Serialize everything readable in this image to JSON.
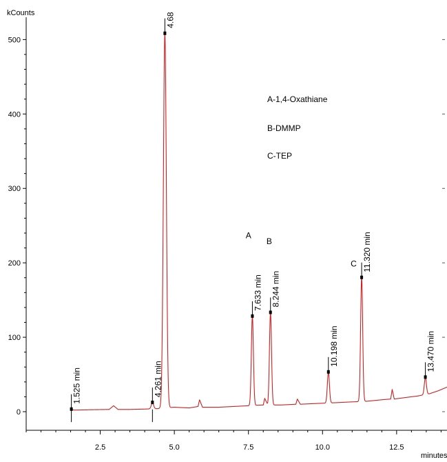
{
  "chart_data": {
    "type": "line",
    "title": "",
    "xlabel": "minutes",
    "ylabel": "kCounts",
    "xlim": [
      0.0,
      14.2
    ],
    "ylim": [
      -25,
      530
    ],
    "grid": false,
    "line_color": "#cc1f1f",
    "x_ticks": [
      {
        "value": 2.5,
        "label": "2.5"
      },
      {
        "value": 5.0,
        "label": "5.0"
      },
      {
        "value": 7.5,
        "label": "7.5"
      },
      {
        "value": 10.0,
        "label": "10.0"
      },
      {
        "value": 12.5,
        "label": "12.5"
      }
    ],
    "y_ticks": [
      {
        "value": 0,
        "label": "0"
      },
      {
        "value": 100,
        "label": "100"
      },
      {
        "value": 200,
        "label": "200"
      },
      {
        "value": 300,
        "label": "300"
      },
      {
        "value": 400,
        "label": "400"
      },
      {
        "value": 500,
        "label": "500"
      }
    ],
    "baseline": [
      [
        1.5,
        2
      ],
      [
        2.0,
        2.5
      ],
      [
        2.8,
        3
      ],
      [
        2.95,
        8
      ],
      [
        3.1,
        3
      ],
      [
        3.5,
        3
      ],
      [
        4.0,
        3.5
      ],
      [
        4.4,
        4
      ],
      [
        5.0,
        6
      ],
      [
        5.5,
        5
      ],
      [
        5.8,
        7
      ],
      [
        5.85,
        16
      ],
      [
        5.95,
        6
      ],
      [
        6.5,
        6
      ],
      [
        7.0,
        7
      ],
      [
        7.5,
        8
      ],
      [
        8.0,
        9
      ],
      [
        8.05,
        18
      ],
      [
        8.15,
        9
      ],
      [
        8.6,
        9
      ],
      [
        9.1,
        10
      ],
      [
        9.15,
        17
      ],
      [
        9.25,
        10
      ],
      [
        9.8,
        11
      ],
      [
        10.4,
        12
      ],
      [
        10.9,
        13
      ],
      [
        11.5,
        14
      ],
      [
        12.0,
        16
      ],
      [
        12.3,
        17
      ],
      [
        12.35,
        30
      ],
      [
        12.42,
        17
      ],
      [
        12.8,
        19
      ],
      [
        13.2,
        21
      ],
      [
        13.6,
        24
      ],
      [
        13.9,
        28
      ],
      [
        14.2,
        33
      ]
    ],
    "peaks": [
      {
        "time": 1.525,
        "height": 3,
        "width": 0.04,
        "label": "1.525 min"
      },
      {
        "time": 4.261,
        "height": 12,
        "width": 0.04,
        "label": "4.261 min"
      },
      {
        "time": 4.68,
        "height": 508,
        "width": 0.05,
        "label": "4.68"
      },
      {
        "time": 7.633,
        "height": 128,
        "width": 0.035,
        "label": "7.633 min"
      },
      {
        "time": 8.244,
        "height": 133,
        "width": 0.035,
        "label": "8.244 min"
      },
      {
        "time": 10.198,
        "height": 53,
        "width": 0.035,
        "label": "10.198 min"
      },
      {
        "time": 11.32,
        "height": 180,
        "width": 0.035,
        "label": "11.320 min"
      },
      {
        "time": 13.47,
        "height": 46,
        "width": 0.035,
        "label": "13.470 min"
      }
    ],
    "annotations": [
      {
        "text": "A",
        "time": 7.5,
        "value": 233
      },
      {
        "text": "B",
        "time": 8.2,
        "value": 225
      },
      {
        "text": "C",
        "time": 11.05,
        "value": 195
      }
    ],
    "legend": [
      "A-1,4-Oxathiane",
      "B-DMMP",
      "C-TEP"
    ]
  }
}
